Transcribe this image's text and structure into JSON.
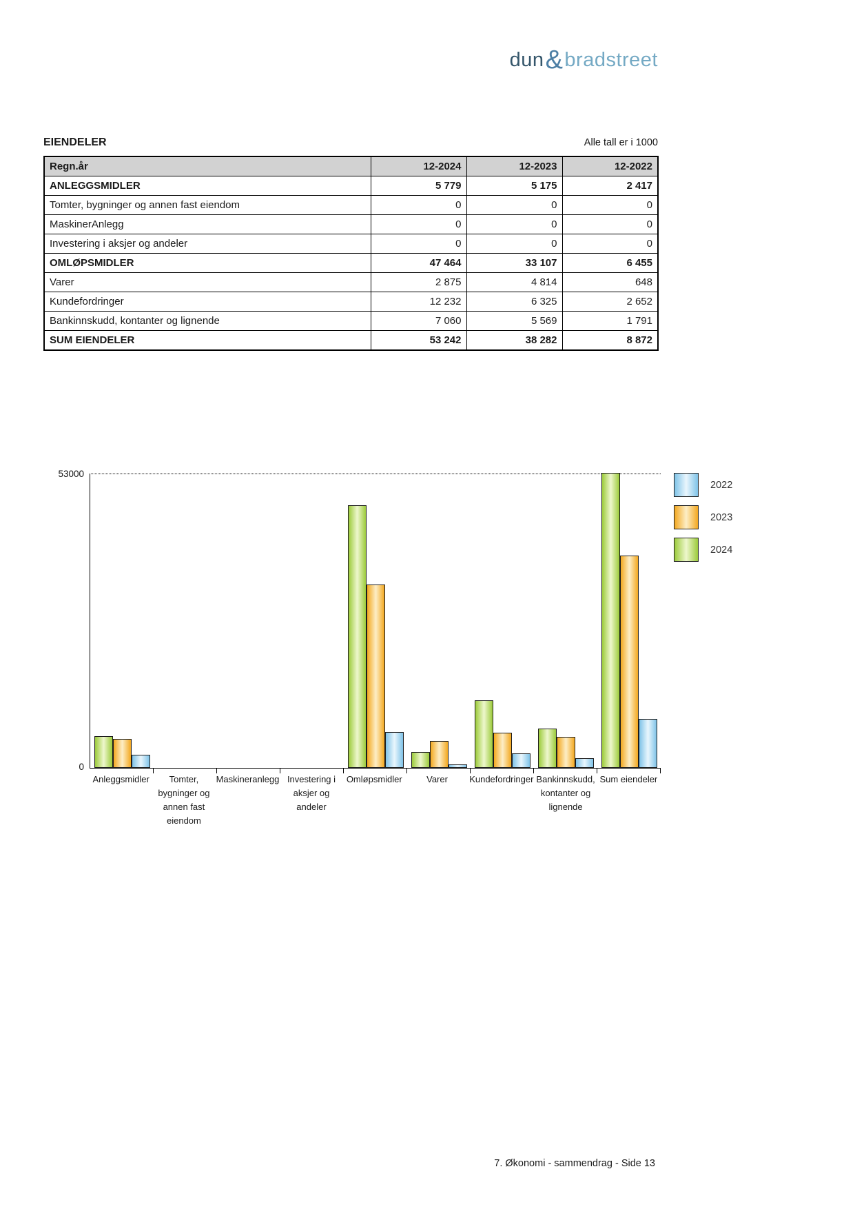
{
  "logo": {
    "dun": "dun",
    "amp": "&",
    "bradstreet": "bradstreet",
    "colors": {
      "dun": "#35566b",
      "amp": "#4d7fa5",
      "bradstreet": "#74a9c4"
    }
  },
  "header": {
    "title": "EIENDELER",
    "note": "Alle tall er i 1000"
  },
  "table": {
    "columns": [
      "Regn.år",
      "12-2024",
      "12-2023",
      "12-2022"
    ],
    "rows": [
      {
        "label": "ANLEGGSMIDLER",
        "values": [
          "5 779",
          "5 175",
          "2 417"
        ],
        "bold": true
      },
      {
        "label": "Tomter, bygninger og annen fast eiendom",
        "values": [
          "0",
          "0",
          "0"
        ],
        "bold": false
      },
      {
        "label": "MaskinerAnlegg",
        "values": [
          "0",
          "0",
          "0"
        ],
        "bold": false
      },
      {
        "label": "Investering i aksjer og andeler",
        "values": [
          "0",
          "0",
          "0"
        ],
        "bold": false
      },
      {
        "label": "OMLØPSMIDLER",
        "values": [
          "47 464",
          "33 107",
          "6 455"
        ],
        "bold": true
      },
      {
        "label": "Varer",
        "values": [
          "2 875",
          "4 814",
          "648"
        ],
        "bold": false
      },
      {
        "label": "Kundefordringer",
        "values": [
          "12 232",
          "6 325",
          "2 652"
        ],
        "bold": false
      },
      {
        "label": "Bankinnskudd, kontanter og lignende",
        "values": [
          "7 060",
          "5 569",
          "1 791"
        ],
        "bold": false
      },
      {
        "label": "SUM EIENDELER",
        "values": [
          "53 242",
          "38 282",
          "8 872"
        ],
        "bold": true
      }
    ]
  },
  "chart_data": {
    "type": "bar",
    "title": "",
    "xlabel": "",
    "ylabel": "",
    "ylim": [
      0,
      53000
    ],
    "yticks": [
      "53000",
      "0"
    ],
    "grid": "dotted horizontal line at 53000",
    "legend_position": "right",
    "categories": [
      [
        "Anleggsmidler"
      ],
      [
        "Tomter,",
        "bygninger og",
        "annen fast",
        "eiendom"
      ],
      [
        "Maskineranlegg"
      ],
      [
        "Investering i",
        "aksjer og",
        "andeler"
      ],
      [
        "Omløpsmidler"
      ],
      [
        "Varer"
      ],
      [
        "Kundefordringer"
      ],
      [
        "Bankinnskudd,",
        "kontanter og",
        "lignende"
      ],
      [
        "Sum eiendeler"
      ]
    ],
    "series": [
      {
        "name": "2024",
        "color_edge": "#9ccb3b",
        "color_center": "#eef7cd",
        "values": [
          5779,
          0,
          0,
          0,
          47464,
          2875,
          12232,
          7060,
          53242
        ]
      },
      {
        "name": "2023",
        "color_edge": "#f3a820",
        "color_center": "#fdeec6",
        "values": [
          5175,
          0,
          0,
          0,
          33107,
          4814,
          6325,
          5569,
          38282
        ]
      },
      {
        "name": "2022",
        "color_edge": "#7fc3e8",
        "color_center": "#e9f6fd",
        "values": [
          2417,
          0,
          0,
          0,
          6455,
          648,
          2652,
          1791,
          8872
        ]
      }
    ],
    "legend": [
      {
        "label": "2022",
        "color_edge": "#7fc3e8",
        "color_center": "#e9f6fd"
      },
      {
        "label": "2023",
        "color_edge": "#f3a820",
        "color_center": "#fdeec6"
      },
      {
        "label": "2024",
        "color_edge": "#9ccb3b",
        "color_center": "#eef7cd"
      }
    ]
  },
  "footer": {
    "text": "7. Økonomi - sammendrag - Side 13"
  }
}
